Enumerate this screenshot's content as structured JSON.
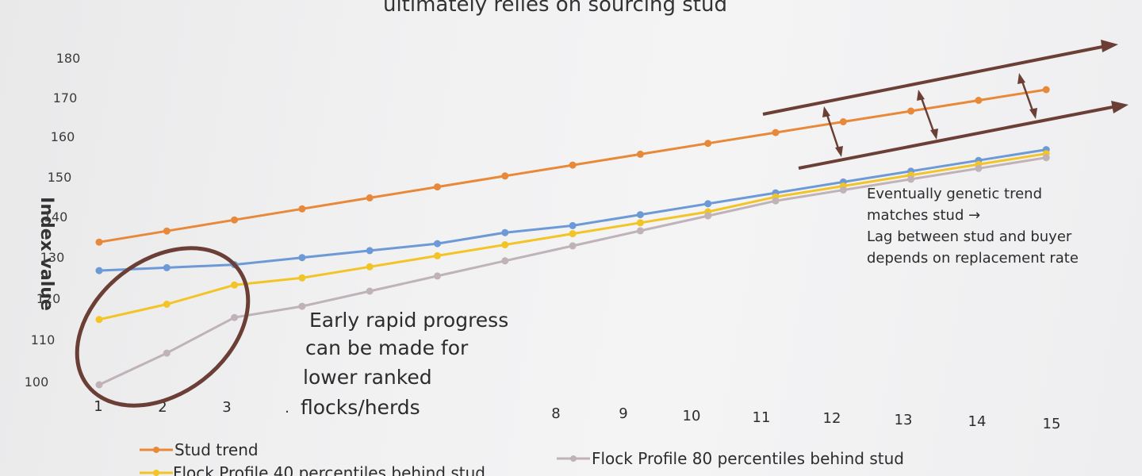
{
  "title_fragment": "ultimately relies on sourcing stud",
  "chart_data": {
    "type": "line",
    "ylabel": "Index value",
    "yticks": [
      "100",
      "110",
      "120",
      "130",
      "140",
      "150",
      "160",
      "170",
      "180"
    ],
    "xticks": [
      "1",
      "2",
      "3",
      ".",
      "8",
      "9",
      "10",
      "11",
      "12",
      "13",
      "14",
      "15"
    ],
    "x": [
      1,
      2,
      3,
      4,
      5,
      6,
      7,
      8,
      9,
      10,
      11,
      12,
      13,
      14,
      15
    ],
    "ylim": [
      100,
      180
    ],
    "xlim": [
      1,
      15
    ],
    "grid": false,
    "legend_position": "bottom",
    "series": [
      {
        "name": "Stud trend",
        "color": "#e8893a",
        "values": [
          135,
          138,
          141,
          144,
          147,
          150,
          153,
          156,
          159,
          162,
          165,
          168,
          171,
          174,
          177
        ]
      },
      {
        "name": "",
        "color": "#6d9ad6",
        "values": [
          128,
          129,
          130,
          132,
          134,
          136,
          139,
          141,
          144,
          147,
          150,
          153,
          156,
          159,
          162
        ]
      },
      {
        "name": "Flock Profile 40 percentiles behind stud",
        "color": "#f3c426",
        "values": [
          116,
          120,
          125,
          127,
          130,
          133,
          136,
          139,
          142,
          145,
          149,
          152,
          155,
          158,
          161
        ]
      },
      {
        "name": "Flock Profile 80 percentiles behind stud",
        "color": "#bfb2b8",
        "values": [
          100,
          108,
          117,
          120,
          124,
          128,
          132,
          136,
          140,
          144,
          148,
          151,
          154,
          157,
          160
        ]
      }
    ],
    "annotations": {
      "left": [
        "Early rapid progress",
        "can be made for",
        "lower ranked",
        "flocks/herds"
      ],
      "right": [
        "Eventually genetic trend",
        "matches stud →",
        "Lag between stud and buyer",
        "depends on replacement rate"
      ]
    },
    "overlay_color": "#6b3f35"
  }
}
